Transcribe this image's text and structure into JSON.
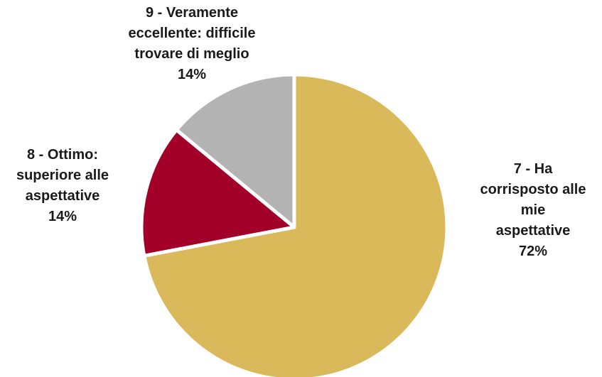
{
  "chart_data": {
    "type": "pie",
    "slices": [
      {
        "label_lines": [
          "7 - Ha",
          "corrisposto alle",
          "mie",
          "aspettative"
        ],
        "value_label": "72%",
        "value": 72,
        "color": "#d9b95a"
      },
      {
        "label_lines": [
          "8 - Ottimo:",
          "superiore alle",
          "aspettative"
        ],
        "value_label": "14%",
        "value": 14,
        "color": "#a30029"
      },
      {
        "label_lines": [
          "9 - Veramente",
          "eccellente: difficile",
          "trovare di meglio"
        ],
        "value_label": "14%",
        "value": 14,
        "color": "#b3b3b3"
      }
    ],
    "start_angle": "12 o'clock",
    "direction": "clockwise",
    "legend": "none",
    "slice_border_color": "#ffffff"
  }
}
